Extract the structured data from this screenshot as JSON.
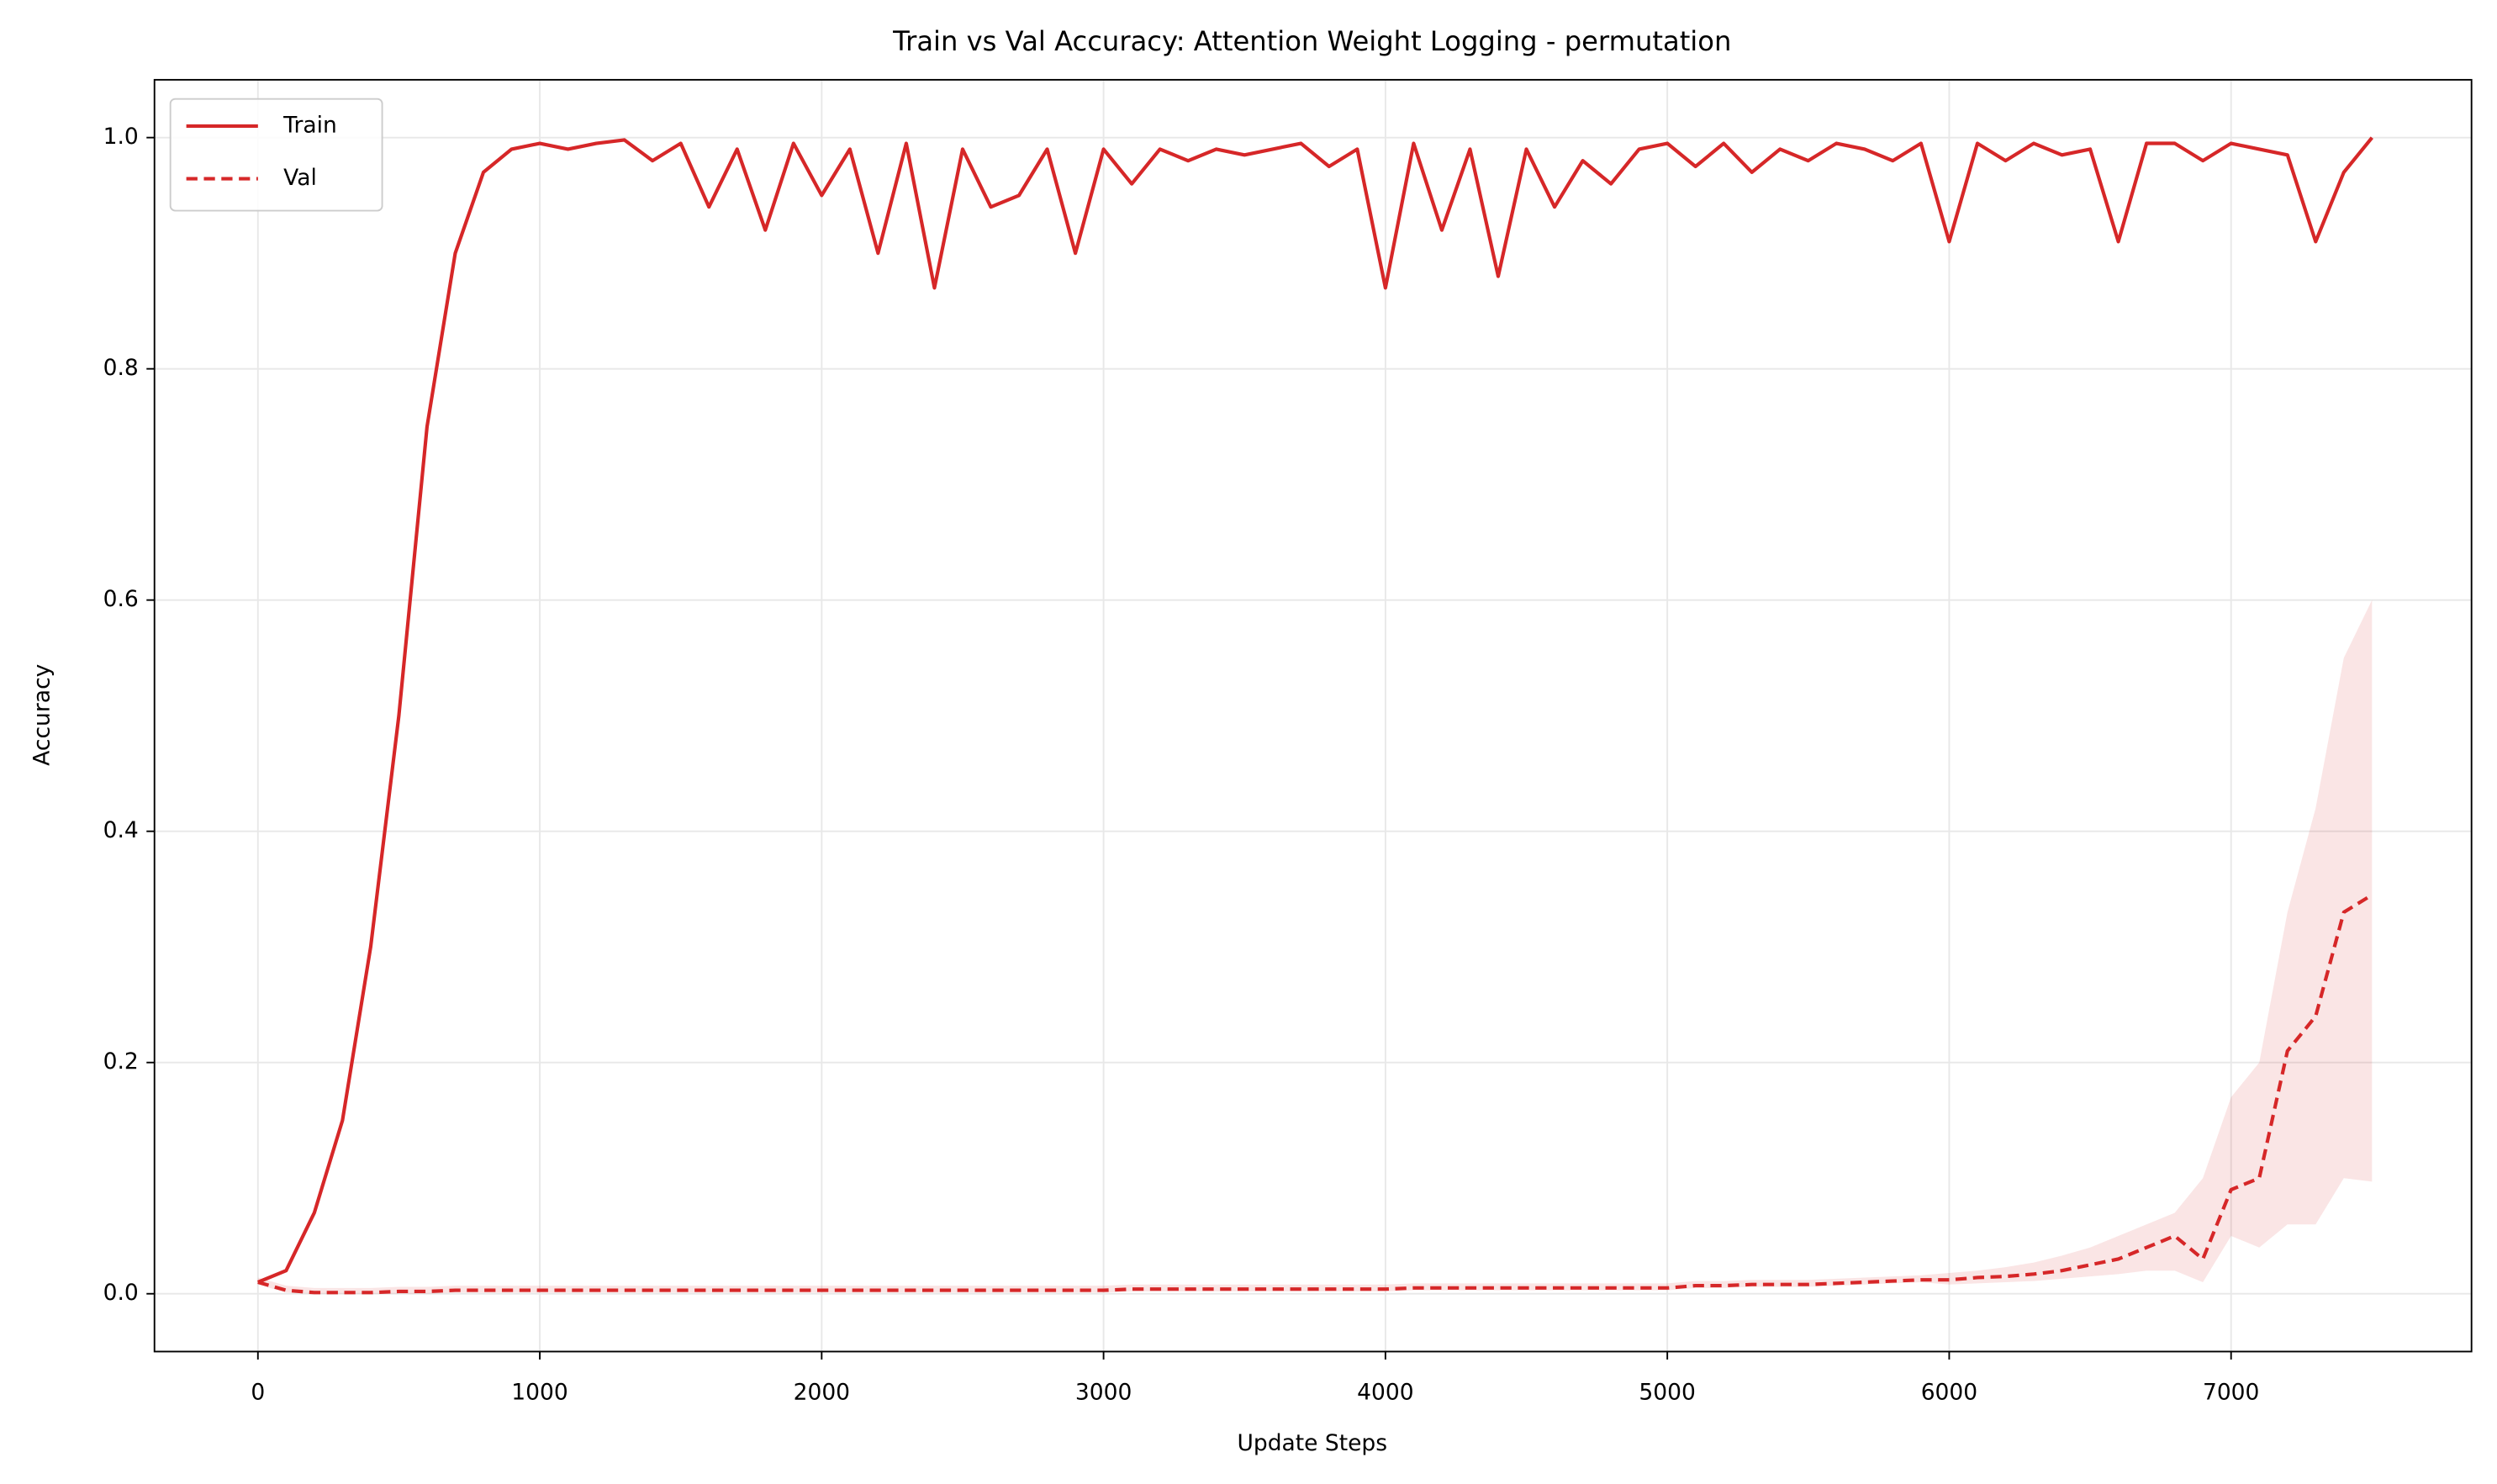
{
  "chart_data": {
    "type": "line",
    "title": "Train vs Val Accuracy: Attention Weight Logging - permutation",
    "x_label": "Update Steps",
    "y_label": "Accuracy",
    "x": [
      0,
      100,
      200,
      300,
      400,
      500,
      600,
      700,
      800,
      900,
      1000,
      1100,
      1200,
      1300,
      1400,
      1500,
      1600,
      1700,
      1800,
      1900,
      2000,
      2100,
      2200,
      2300,
      2400,
      2500,
      2600,
      2700,
      2800,
      2900,
      3000,
      3100,
      3200,
      3300,
      3400,
      3500,
      3600,
      3700,
      3800,
      3900,
      4000,
      4100,
      4200,
      4300,
      4400,
      4500,
      4600,
      4700,
      4800,
      4900,
      5000,
      5100,
      5200,
      5300,
      5400,
      5500,
      5600,
      5700,
      5800,
      5900,
      6000,
      6100,
      6200,
      6300,
      6400,
      6500,
      6600,
      6700,
      6800,
      6900,
      7000,
      7100,
      7200,
      7300,
      7400,
      7500
    ],
    "series": [
      {
        "name": "Train",
        "color": "#d62728",
        "linestyle": "solid",
        "values": [
          0.01,
          0.02,
          0.07,
          0.15,
          0.3,
          0.5,
          0.75,
          0.9,
          0.97,
          0.99,
          0.995,
          0.99,
          0.995,
          0.998,
          0.98,
          0.995,
          0.94,
          0.99,
          0.92,
          0.995,
          0.95,
          0.99,
          0.9,
          0.995,
          0.87,
          0.99,
          0.94,
          0.95,
          0.99,
          0.9,
          0.99,
          0.96,
          0.99,
          0.98,
          0.99,
          0.985,
          0.99,
          0.995,
          0.975,
          0.99,
          0.87,
          0.995,
          0.92,
          0.99,
          0.88,
          0.99,
          0.94,
          0.98,
          0.96,
          0.99,
          0.995,
          0.975,
          0.995,
          0.97,
          0.99,
          0.98,
          0.995,
          0.99,
          0.98,
          0.995,
          0.91,
          0.995,
          0.98,
          0.995,
          0.985,
          0.99,
          0.91,
          0.995,
          0.995,
          0.98,
          0.995,
          0.99,
          0.985,
          0.91,
          0.97,
          1.0
        ]
      },
      {
        "name": "Val",
        "color": "#d62728",
        "linestyle": "dashed",
        "values": [
          0.01,
          0.003,
          0.001,
          0.001,
          0.001,
          0.002,
          0.002,
          0.003,
          0.003,
          0.003,
          0.003,
          0.003,
          0.003,
          0.003,
          0.003,
          0.003,
          0.003,
          0.003,
          0.003,
          0.003,
          0.003,
          0.003,
          0.003,
          0.003,
          0.003,
          0.003,
          0.003,
          0.003,
          0.003,
          0.003,
          0.003,
          0.004,
          0.004,
          0.004,
          0.004,
          0.004,
          0.004,
          0.004,
          0.004,
          0.004,
          0.004,
          0.005,
          0.005,
          0.005,
          0.005,
          0.005,
          0.005,
          0.005,
          0.005,
          0.005,
          0.005,
          0.007,
          0.007,
          0.008,
          0.008,
          0.008,
          0.009,
          0.01,
          0.011,
          0.012,
          0.012,
          0.014,
          0.015,
          0.017,
          0.02,
          0.025,
          0.03,
          0.04,
          0.05,
          0.03,
          0.09,
          0.1,
          0.21,
          0.24,
          0.33,
          0.345
        ],
        "upper": [
          0.014,
          0.007,
          0.005,
          0.005,
          0.005,
          0.006,
          0.006,
          0.007,
          0.007,
          0.007,
          0.007,
          0.007,
          0.007,
          0.007,
          0.007,
          0.007,
          0.007,
          0.007,
          0.007,
          0.007,
          0.007,
          0.007,
          0.007,
          0.007,
          0.007,
          0.007,
          0.007,
          0.007,
          0.007,
          0.007,
          0.007,
          0.008,
          0.008,
          0.008,
          0.008,
          0.008,
          0.008,
          0.008,
          0.008,
          0.008,
          0.008,
          0.009,
          0.009,
          0.009,
          0.009,
          0.009,
          0.009,
          0.009,
          0.009,
          0.009,
          0.009,
          0.011,
          0.011,
          0.012,
          0.012,
          0.012,
          0.013,
          0.014,
          0.015,
          0.016,
          0.018,
          0.02,
          0.023,
          0.027,
          0.033,
          0.04,
          0.05,
          0.06,
          0.07,
          0.1,
          0.17,
          0.2,
          0.33,
          0.42,
          0.55,
          0.6
        ],
        "lower": [
          0.008,
          0.001,
          0,
          0,
          0,
          0,
          0,
          0.001,
          0.001,
          0.001,
          0.001,
          0.001,
          0.001,
          0.001,
          0.001,
          0.001,
          0.001,
          0.001,
          0.001,
          0.001,
          0.001,
          0.001,
          0.001,
          0.001,
          0.001,
          0.001,
          0.001,
          0.001,
          0.001,
          0.001,
          0.001,
          0.002,
          0.002,
          0.002,
          0.002,
          0.002,
          0.002,
          0.002,
          0.002,
          0.002,
          0.002,
          0.003,
          0.003,
          0.003,
          0.003,
          0.003,
          0.003,
          0.003,
          0.003,
          0.003,
          0.003,
          0.005,
          0.005,
          0.006,
          0.006,
          0.006,
          0.007,
          0.008,
          0.009,
          0.01,
          0.008,
          0.009,
          0.01,
          0.011,
          0.013,
          0.015,
          0.017,
          0.02,
          0.02,
          0.01,
          0.05,
          0.04,
          0.06,
          0.06,
          0.1,
          0.097
        ]
      }
    ],
    "xlim": [
      -367,
      7853
    ],
    "ylim": [
      -0.05,
      1.05
    ],
    "xticks": [
      0,
      1000,
      2000,
      3000,
      4000,
      5000,
      6000,
      7000
    ],
    "yticks": [
      {
        "value": 0,
        "label": "0.0"
      },
      0.2,
      0.4,
      0.6,
      0.8,
      {
        "value": 1,
        "label": "1.0"
      }
    ],
    "grid": true,
    "legend": "upper-left"
  }
}
